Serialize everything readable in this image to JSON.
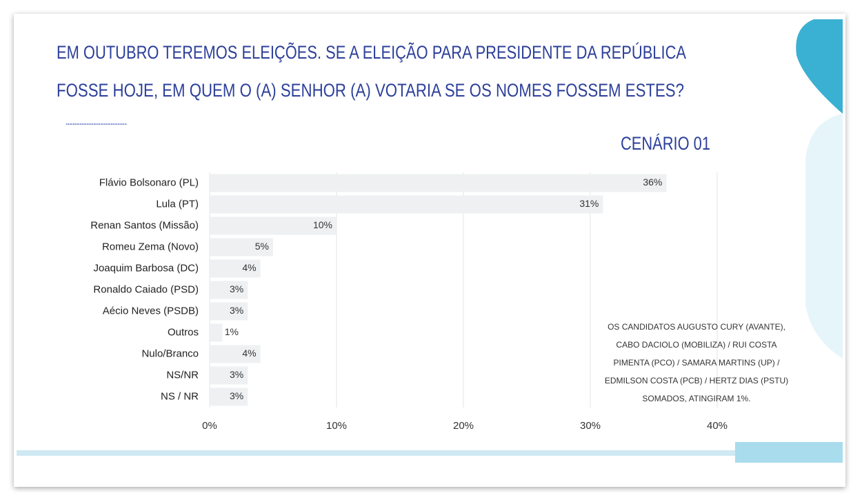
{
  "chart_data": {
    "type": "bar",
    "orientation": "horizontal",
    "title": [
      "EM OUTUBRO TEREMOS ELEIÇÕES. SE A ELEIÇÃO PARA PRESIDENTE DA REPÚBLICA",
      "FOSSE HOJE, EM QUEM O (A) SENHOR (A) VOTARIA SE OS NOMES FOSSEM ESTES?"
    ],
    "subtitle": "CENÁRIO 01",
    "categories": [
      "Flávio Bolsonaro (PL)",
      "Lula (PT)",
      "Renan Santos (Missão)",
      "Romeu Zema (Novo)",
      "Joaquim Barbosa (DC)",
      "Ronaldo Caiado (PSD)",
      "Aécio Neves (PSDB)",
      "Outros",
      "Nulo/Branco",
      "NS/NR",
      "NS / NR"
    ],
    "values": [
      36,
      31,
      10,
      5,
      4,
      3,
      3,
      1,
      4,
      3,
      3
    ],
    "value_labels": [
      "36%",
      "31%",
      "10%",
      "5%",
      "4%",
      "3%",
      "3%",
      "1%",
      "4%",
      "3%",
      "3%"
    ],
    "color": "#eef0f2",
    "xlim": [
      0,
      40
    ],
    "xticks": [
      {
        "value": 0,
        "label": "0%"
      },
      {
        "value": 10,
        "label": "10%"
      },
      {
        "value": 20,
        "label": "20%"
      },
      {
        "value": 30,
        "label": "30%"
      },
      {
        "value": 40,
        "label": "40%"
      }
    ],
    "grid": true,
    "annotation": [
      "OS CANDIDATOS AUGUSTO CURY (AVANTE),",
      "CABO DACIOLO (MOBILIZA) / RUI COSTA",
      "PIMENTA (PCO) / SAMARA MARTINS (UP) /",
      "EDMILSON COSTA (PCB) / HERTZ DIAS (PSTU)",
      "SOMADOS, ATINGIRAM 1%."
    ]
  }
}
